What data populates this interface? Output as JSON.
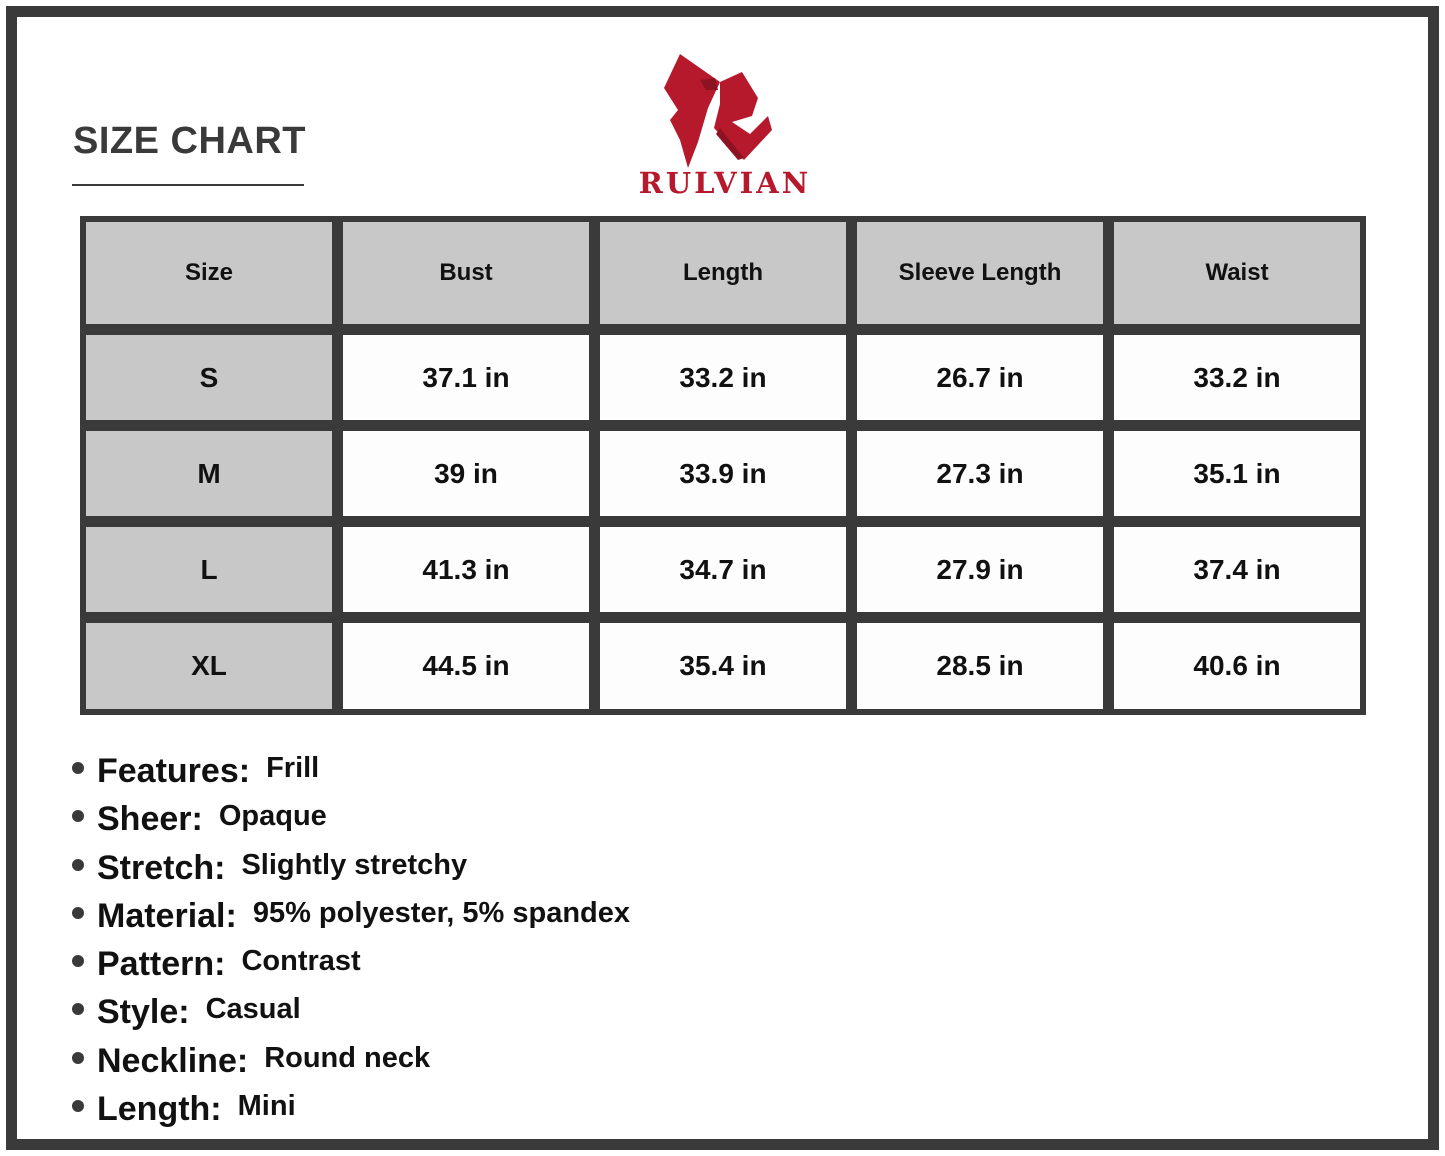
{
  "title": "SIZE CHART",
  "brand": {
    "name": "RULVIAN",
    "color": "#b5192b",
    "icon": "rulvian-r-logo"
  },
  "table": {
    "headers": [
      "Size",
      "Bust",
      "Length",
      "Sleeve Length",
      "Waist"
    ],
    "rows": [
      [
        "S",
        "37.1 in",
        "33.2 in",
        "26.7 in",
        "33.2 in"
      ],
      [
        "M",
        "39 in",
        "33.9 in",
        "27.3 in",
        "35.1 in"
      ],
      [
        "L",
        "41.3 in",
        "34.7 in",
        "27.9 in",
        "37.4 in"
      ],
      [
        "XL",
        "44.5 in",
        "35.4 in",
        "28.5 in",
        "40.6 in"
      ]
    ]
  },
  "specs": [
    {
      "label": "Features:",
      "value": "Frill"
    },
    {
      "label": "Sheer:",
      "value": "Opaque"
    },
    {
      "label": "Stretch:",
      "value": "Slightly stretchy"
    },
    {
      "label": "Material:",
      "value": "95% polyester, 5% spandex"
    },
    {
      "label": "Pattern:",
      "value": "Contrast"
    },
    {
      "label": "Style:",
      "value": "Casual"
    },
    {
      "label": "Neckline:",
      "value": "Round neck"
    },
    {
      "label": "Length:",
      "value": "Mini"
    }
  ]
}
